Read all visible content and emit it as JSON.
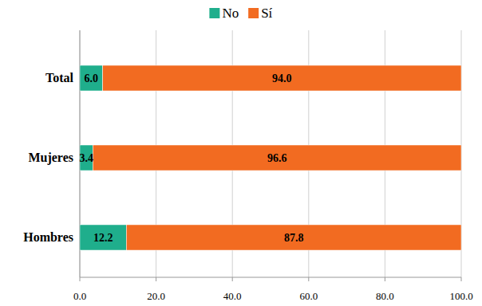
{
  "chart_data": {
    "type": "bar",
    "orientation": "horizontal",
    "stacked": true,
    "data_labels": true,
    "grid": true,
    "legend": "top",
    "categories": [
      "Total",
      "Mujeres",
      "Hombres"
    ],
    "series": [
      {
        "name": "No",
        "color": "#1fae8c",
        "values": [
          6.0,
          3.4,
          12.2
        ],
        "value_labels": [
          "6.0",
          "3.4",
          "12.2"
        ]
      },
      {
        "name": "Sí",
        "color": "#f26b21",
        "values": [
          94.0,
          96.6,
          87.8
        ],
        "value_labels": [
          "94.0",
          "96.6",
          "87.8"
        ]
      }
    ],
    "xlim": [
      0,
      100
    ],
    "xticks": [
      {
        "value": 0,
        "label": "0.0"
      },
      {
        "value": 20,
        "label": "20.0"
      },
      {
        "value": 40,
        "label": "40.0"
      },
      {
        "value": 60,
        "label": "60.0"
      },
      {
        "value": 80,
        "label": "80.0"
      },
      {
        "value": 100,
        "label": "100.0"
      }
    ]
  }
}
